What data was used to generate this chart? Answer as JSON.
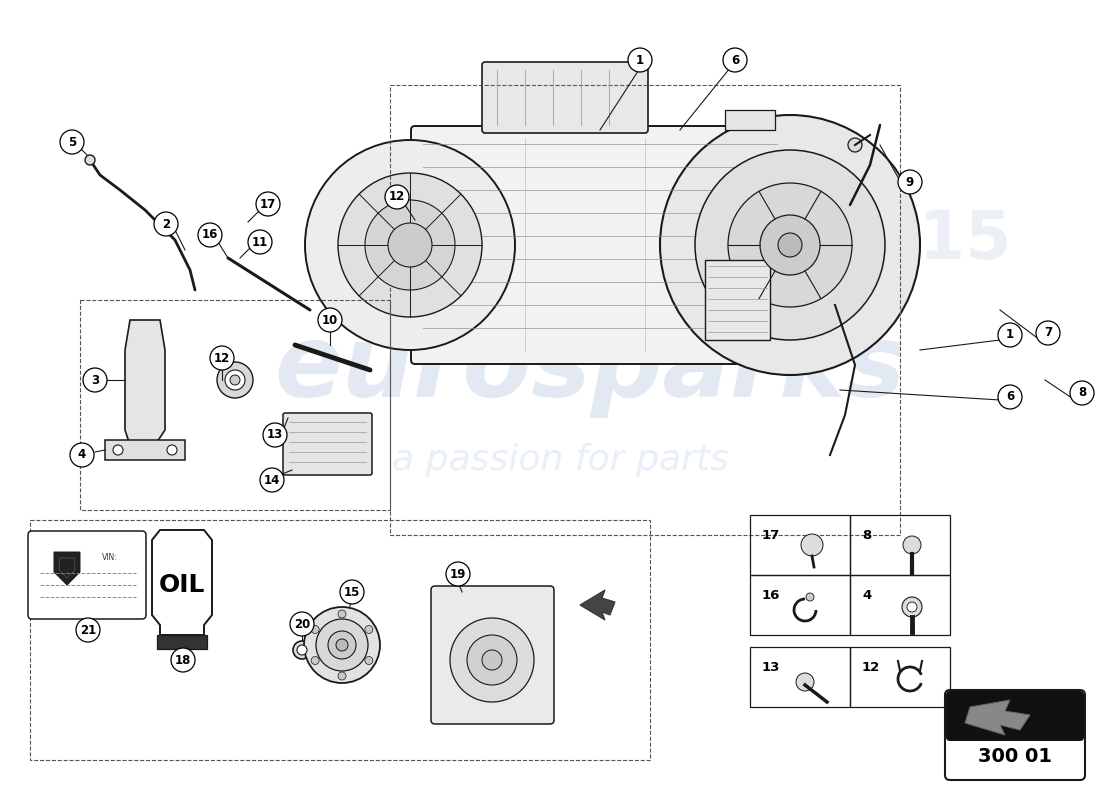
{
  "bg_color": "#ffffff",
  "wm_color1": "#c8d4e8",
  "wm_color2": "#c8d8f0",
  "line_color": "#1a1a1a",
  "part_code": "300 01",
  "fig_w": 11.0,
  "fig_h": 8.0,
  "dpi": 100,
  "callout_r": 12,
  "callout_fs": 8.5,
  "table_parts_top": [
    [
      "17",
      "8"
    ],
    [
      "16",
      "4"
    ]
  ],
  "table_parts_bot": [
    [
      "13",
      "12"
    ]
  ],
  "ref_box_label": "300 01"
}
